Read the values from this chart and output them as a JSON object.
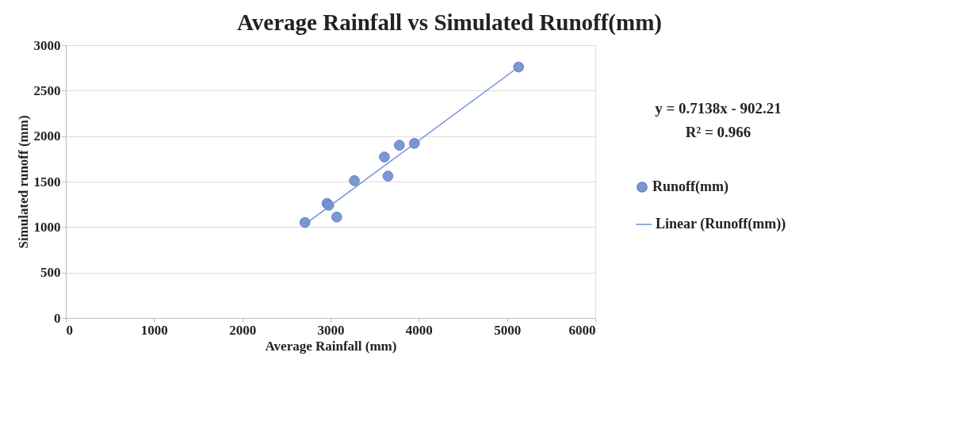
{
  "chart_data": {
    "type": "scatter",
    "title": "Average Rainfall vs Simulated Runoff(mm)",
    "xlabel": "Average  Rainfall (mm)",
    "ylabel": "Simulated runoff (mm)",
    "xlim": [
      0,
      6000
    ],
    "xticks": [
      0,
      1000,
      2000,
      3000,
      4000,
      5000,
      6000
    ],
    "ylim": [
      0,
      3000
    ],
    "yticks": [
      0,
      500,
      1000,
      1500,
      2000,
      2500,
      3000
    ],
    "grid": "y",
    "legend": "right",
    "annotations": [
      "y = 0.7138x - 902.21",
      "R² = 0.966"
    ],
    "series": [
      {
        "name": "Runoff(mm)",
        "marker": "circle",
        "color": "#7792d2",
        "x": [
          2710,
          2960,
          2980,
          3070,
          3270,
          3610,
          3650,
          3780,
          3950,
          5130
        ],
        "values": [
          1050,
          1260,
          1240,
          1110,
          1510,
          1770,
          1560,
          1900,
          1920,
          2760
        ]
      },
      {
        "name": "Linear (Runoff(mm))",
        "type": "line",
        "color": "#6f8fd6",
        "line_style": "solid",
        "x": [
          2710,
          5130
        ],
        "values": [
          1030,
          2760
        ]
      }
    ]
  }
}
